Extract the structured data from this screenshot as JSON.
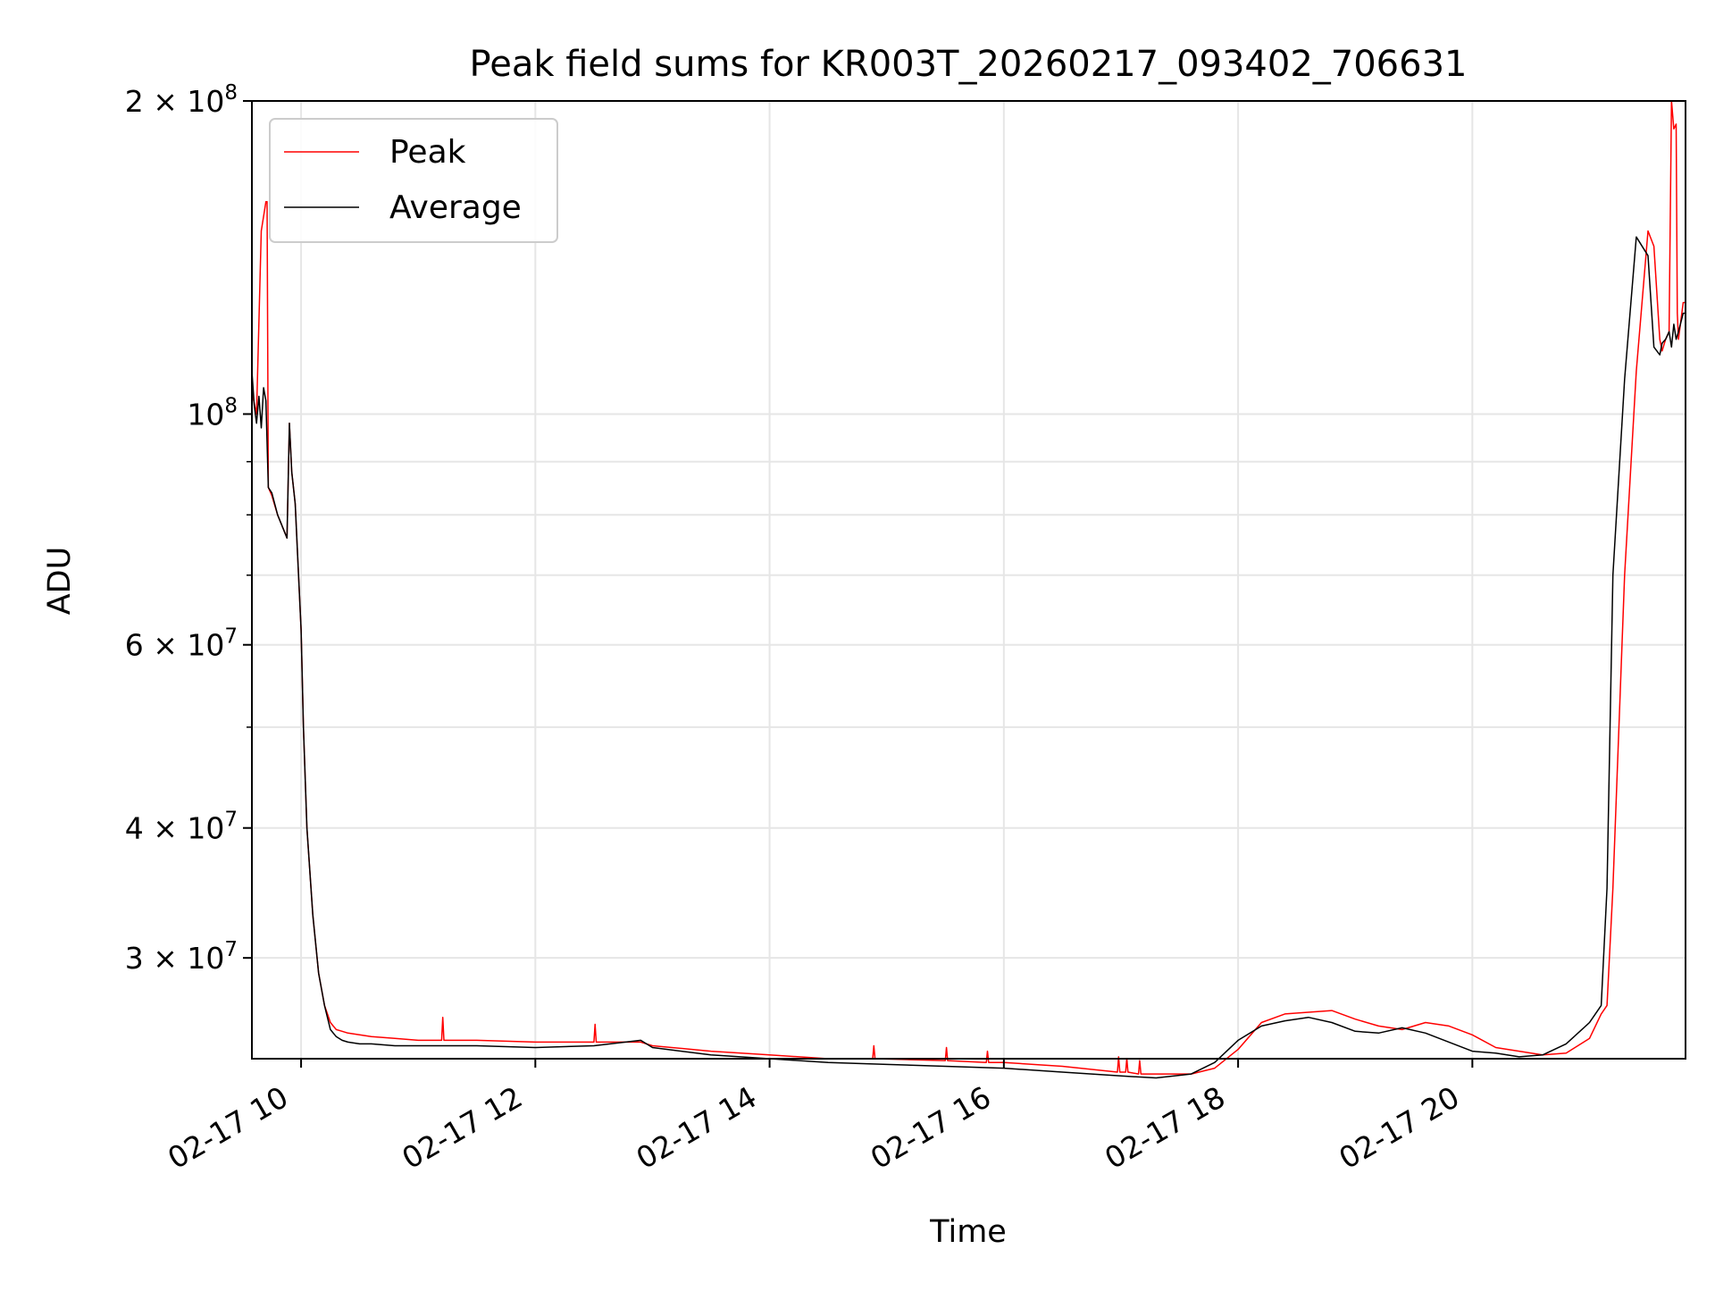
{
  "chart_data": {
    "type": "line",
    "title": "Peak field sums for KR003T_20260217_093402_706631",
    "xlabel": "Time",
    "ylabel": "ADU",
    "yscale": "log",
    "xlim_hours": [
      9.58,
      21.82
    ],
    "ylim": [
      24000000,
      200000000
    ],
    "grid": true,
    "legend_position": "upper-left",
    "x_ticks": [
      {
        "value": 10,
        "label": "02-17 10"
      },
      {
        "value": 12,
        "label": "02-17 12"
      },
      {
        "value": 14,
        "label": "02-17 14"
      },
      {
        "value": 16,
        "label": "02-17 16"
      },
      {
        "value": 18,
        "label": "02-17 18"
      },
      {
        "value": 20,
        "label": "02-17 20"
      }
    ],
    "y_major_ticks": [
      {
        "value": 30000000,
        "label": "3 × 10⁷",
        "mant": "3 × 10",
        "exp": "7"
      },
      {
        "value": 40000000,
        "label": "4 × 10⁷",
        "mant": "4 × 10",
        "exp": "7"
      },
      {
        "value": 60000000,
        "label": "6 × 10⁷",
        "mant": "6 × 10",
        "exp": "7"
      },
      {
        "value": 100000000,
        "label": "10⁸",
        "mant": "10",
        "exp": "8"
      },
      {
        "value": 200000000,
        "label": "2 × 10⁸",
        "mant": "2 × 10",
        "exp": "8"
      }
    ],
    "y_minor_grid": [
      50000000,
      70000000,
      80000000,
      90000000
    ],
    "series": [
      {
        "name": "Peak",
        "color": "#ff0000",
        "x": [
          9.58,
          9.62,
          9.66,
          9.7,
          9.71,
          9.72,
          9.74,
          9.75,
          9.8,
          9.88,
          9.9,
          9.92,
          9.95,
          10.0,
          10.02,
          10.05,
          10.1,
          10.15,
          10.2,
          10.25,
          10.3,
          10.35,
          10.4,
          10.5,
          10.6,
          10.8,
          11.0,
          11.2,
          11.21,
          11.22,
          11.5,
          12.0,
          12.5,
          12.51,
          12.52,
          12.9,
          13.0,
          13.5,
          14.0,
          14.5,
          14.88,
          14.89,
          14.9,
          15.5,
          15.51,
          15.52,
          15.85,
          15.86,
          15.87,
          16.0,
          16.5,
          16.97,
          16.98,
          16.99,
          17.04,
          17.05,
          17.06,
          17.15,
          17.16,
          17.17,
          17.3,
          17.6,
          17.8,
          18.0,
          18.2,
          18.4,
          18.6,
          18.8,
          19.0,
          19.2,
          19.4,
          19.6,
          19.8,
          20.0,
          20.2,
          20.4,
          20.6,
          20.8,
          21.0,
          21.1,
          21.15,
          21.2,
          21.3,
          21.4,
          21.5,
          21.55,
          21.6,
          21.62,
          21.65,
          21.68,
          21.7,
          21.72,
          21.74,
          21.75,
          21.76,
          21.8,
          21.82
        ],
        "y": [
          105000000,
          100000000,
          150000000,
          160000000,
          160000000,
          85000000,
          84000000,
          83500000,
          80000000,
          76000000,
          98000000,
          88000000,
          82000000,
          62000000,
          50000000,
          40000000,
          33000000,
          29000000,
          27000000,
          26000000,
          25600000,
          25500000,
          25400000,
          25300000,
          25200000,
          25100000,
          25000000,
          25000000,
          26300000,
          25000000,
          25000000,
          24900000,
          24900000,
          25900000,
          24900000,
          24900000,
          24700000,
          24400000,
          24200000,
          24000000,
          24000000,
          24700000,
          24000000,
          23900000,
          24600000,
          23900000,
          23800000,
          24400000,
          23800000,
          23800000,
          23600000,
          23300000,
          24100000,
          23300000,
          23300000,
          24000000,
          23300000,
          23200000,
          23900000,
          23200000,
          23200000,
          23200000,
          23500000,
          24500000,
          26000000,
          26500000,
          26600000,
          26700000,
          26200000,
          25800000,
          25600000,
          26000000,
          25800000,
          25300000,
          24600000,
          24400000,
          24200000,
          24300000,
          25100000,
          26500000,
          27000000,
          35000000,
          70000000,
          110000000,
          150000000,
          145000000,
          118000000,
          115000000,
          118000000,
          120000000,
          200000000,
          188000000,
          190000000,
          125000000,
          118000000,
          128000000,
          128000000
        ]
      },
      {
        "name": "Average",
        "color": "#000000",
        "x": [
          9.58,
          9.6,
          9.62,
          9.64,
          9.66,
          9.68,
          9.7,
          9.72,
          9.75,
          9.8,
          9.88,
          9.9,
          9.92,
          9.95,
          10.0,
          10.02,
          10.05,
          10.1,
          10.15,
          10.2,
          10.25,
          10.3,
          10.35,
          10.4,
          10.5,
          10.6,
          10.8,
          11.0,
          11.2,
          11.5,
          12.0,
          12.5,
          12.9,
          13.0,
          13.5,
          14.0,
          14.5,
          15.0,
          15.5,
          16.0,
          16.5,
          17.0,
          17.3,
          17.6,
          17.8,
          18.0,
          18.2,
          18.4,
          18.6,
          18.8,
          19.0,
          19.2,
          19.4,
          19.6,
          19.8,
          20.0,
          20.2,
          20.4,
          20.6,
          20.8,
          21.0,
          21.1,
          21.15,
          21.2,
          21.3,
          21.4,
          21.5,
          21.55,
          21.6,
          21.62,
          21.65,
          21.68,
          21.7,
          21.72,
          21.74,
          21.76,
          21.8,
          21.82
        ],
        "y": [
          110000000,
          102000000,
          98000000,
          104000000,
          97000000,
          106000000,
          103000000,
          85000000,
          84000000,
          80000000,
          76000000,
          98000000,
          88000000,
          82000000,
          62000000,
          50000000,
          40000000,
          33000000,
          29000000,
          27000000,
          25600000,
          25200000,
          25000000,
          24900000,
          24800000,
          24800000,
          24700000,
          24700000,
          24700000,
          24700000,
          24600000,
          24700000,
          25000000,
          24600000,
          24200000,
          24000000,
          23800000,
          23700000,
          23600000,
          23500000,
          23300000,
          23100000,
          23000000,
          23200000,
          23800000,
          25000000,
          25800000,
          26100000,
          26300000,
          26000000,
          25500000,
          25400000,
          25700000,
          25400000,
          24900000,
          24400000,
          24300000,
          24100000,
          24200000,
          24800000,
          26000000,
          27000000,
          35000000,
          70000000,
          108000000,
          148000000,
          142000000,
          116000000,
          114000000,
          117000000,
          118000000,
          120000000,
          116000000,
          122000000,
          118000000,
          120000000,
          125000000,
          125000000
        ]
      }
    ]
  }
}
